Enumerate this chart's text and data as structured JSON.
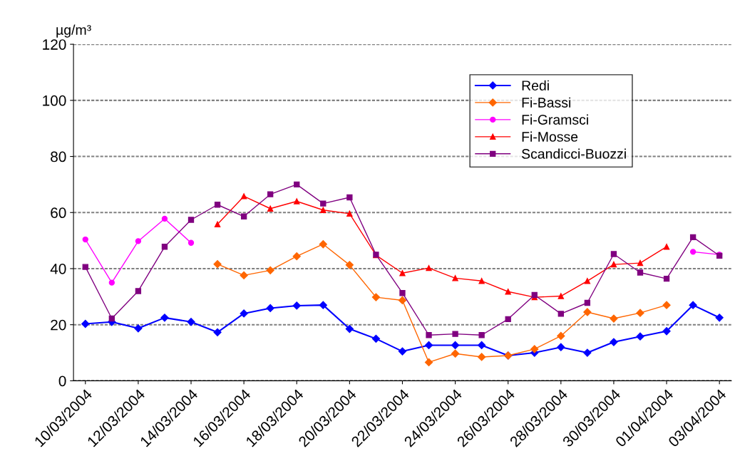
{
  "chart_data": {
    "type": "line",
    "ylabel": "µg/m³",
    "categories": [
      "10/03/2004",
      null,
      "12/03/2004",
      null,
      "14/03/2004",
      null,
      "16/03/2004",
      null,
      "18/03/2004",
      null,
      "20/03/2004",
      null,
      "22/03/2004",
      null,
      "24/03/2004",
      null,
      "26/03/2004",
      null,
      "28/03/2004",
      null,
      "30/03/2004",
      null,
      "01/04/2004",
      null,
      "03/04/2004"
    ],
    "series": [
      {
        "name": "Redi",
        "color": "#0000ff",
        "marker": "diamond",
        "values": [
          20.3,
          21,
          18.7,
          22.5,
          21,
          17.3,
          24,
          25.9,
          26.8,
          27,
          18.5,
          15,
          10.5,
          12.7,
          12.7,
          12.7,
          9,
          10,
          12,
          10,
          13.8,
          15.8,
          17.7,
          27,
          22.5
        ]
      },
      {
        "name": "Fi-Bassi",
        "color": "#ff6600",
        "marker": "diamond",
        "values": [
          null,
          null,
          null,
          null,
          null,
          41.6,
          37.6,
          39.4,
          44.4,
          48.7,
          41.3,
          29.8,
          28.7,
          6.6,
          9.7,
          8.5,
          9,
          11.3,
          16,
          24.5,
          22.2,
          24.2,
          27,
          null,
          null
        ]
      },
      {
        "name": "Fi-Gramsci",
        "color": "#ff00ff",
        "marker": "circle",
        "values": [
          50.4,
          35,
          49.8,
          57.8,
          49.2,
          null,
          null,
          null,
          null,
          null,
          null,
          null,
          null,
          null,
          null,
          null,
          null,
          null,
          null,
          null,
          null,
          null,
          null,
          46,
          45
        ]
      },
      {
        "name": "Fi-Mosse",
        "color": "#ff0000",
        "marker": "triangle",
        "values": [
          null,
          null,
          null,
          null,
          null,
          55.8,
          65.8,
          61.4,
          64,
          60.9,
          59.6,
          44.8,
          38.4,
          40.2,
          36.6,
          35.6,
          31.8,
          29.8,
          30.2,
          35.6,
          41.5,
          42,
          47.8,
          null,
          null
        ]
      },
      {
        "name": "Scandicci-Buozzi",
        "color": "#800080",
        "marker": "square",
        "values": [
          40.6,
          22.2,
          32,
          47.8,
          57.4,
          62.8,
          58.6,
          66.5,
          70,
          63.2,
          65.4,
          45,
          31.3,
          16.3,
          16.7,
          16.3,
          22,
          30.6,
          23.9,
          27.8,
          45.2,
          38.6,
          36.4,
          51.2,
          44.6
        ]
      }
    ],
    "ylim": [
      0,
      120
    ],
    "yticks": [
      0,
      20,
      40,
      60,
      80,
      100,
      120
    ],
    "grid": "y",
    "legend": "top right",
    "line_style": "solid"
  }
}
